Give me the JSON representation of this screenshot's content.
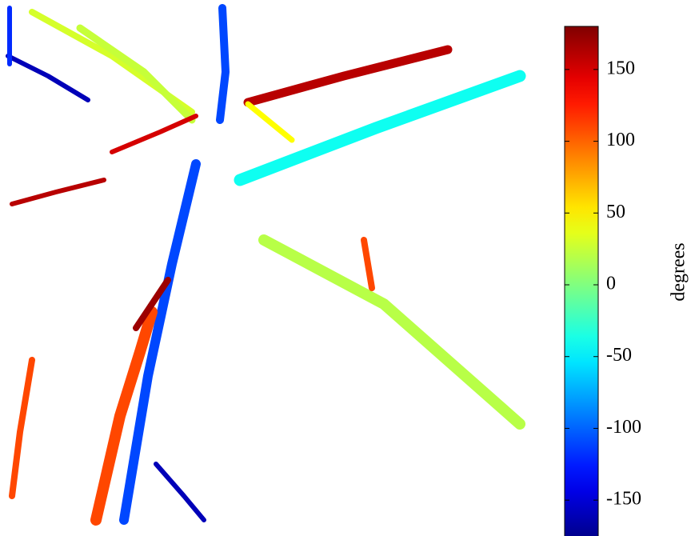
{
  "chart_data": {
    "type": "image",
    "values": [
      30,
      25,
      -110,
      160,
      -40,
      150,
      160,
      -110,
      110,
      20,
      45,
      -160,
      -160,
      110,
      110,
      170,
      -120
    ],
    "colormap": "jet",
    "colorbar": {
      "label": "degrees",
      "clim": [
        -180,
        180
      ],
      "cticks": [
        -150,
        -100,
        -50,
        0,
        50,
        100,
        150
      ]
    }
  }
}
